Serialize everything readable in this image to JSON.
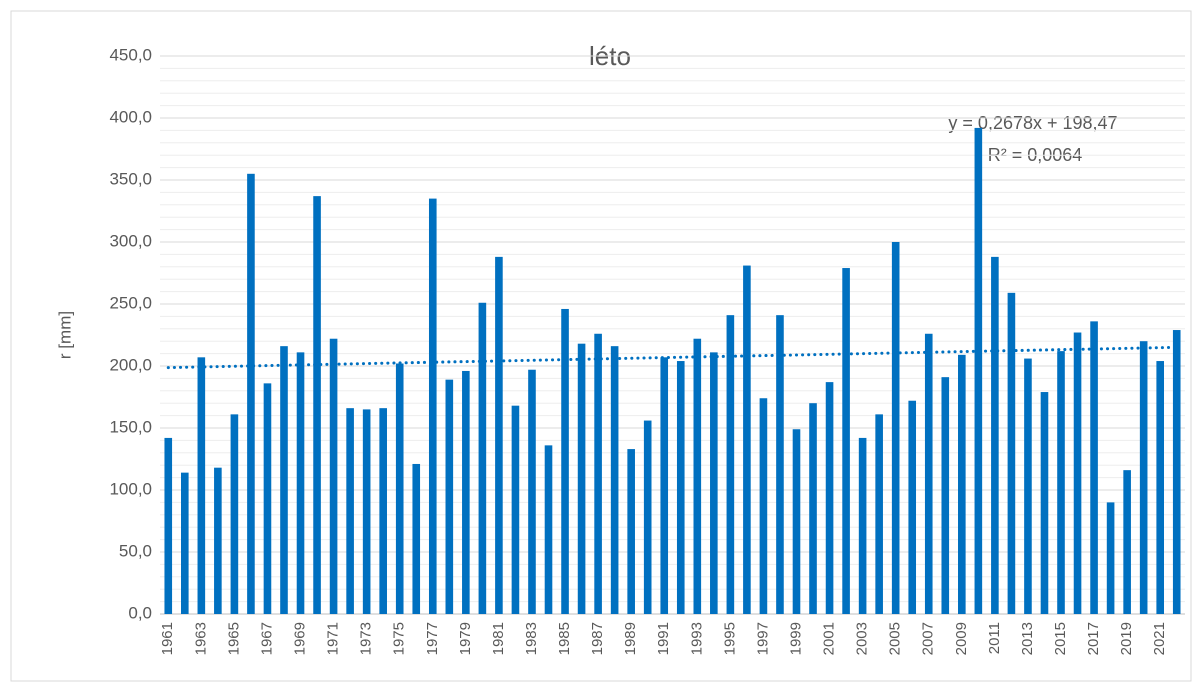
{
  "chart_data": {
    "type": "bar",
    "title": "léto",
    "y_label": "r [mm]",
    "color": "#0070c0",
    "categories": [
      "1961",
      null,
      "1963",
      null,
      "1965",
      null,
      "1967",
      null,
      "1969",
      null,
      "1971",
      null,
      "1973",
      null,
      "1975",
      null,
      "1977",
      null,
      "1979",
      null,
      "1981",
      null,
      "1983",
      null,
      "1985",
      null,
      "1987",
      null,
      "1989",
      null,
      "1991",
      null,
      "1993",
      null,
      "1995",
      null,
      "1997",
      null,
      "1999",
      null,
      "2001",
      null,
      "2003",
      null,
      "2005",
      null,
      "2007",
      null,
      "2009",
      null,
      "2011",
      null,
      "2013",
      null,
      "2015",
      null,
      "2017",
      null,
      "2019",
      null,
      "2021",
      null
    ],
    "values": [
      142,
      114,
      207,
      118,
      161,
      355,
      186,
      216,
      211,
      337,
      222,
      166,
      165,
      166,
      202,
      121,
      335,
      189,
      196,
      251,
      288,
      168,
      197,
      136,
      246,
      218,
      226,
      216,
      133,
      156,
      207,
      204,
      222,
      211,
      241,
      281,
      174,
      241,
      149,
      170,
      187,
      279,
      142,
      161,
      300,
      172,
      226,
      191,
      209,
      392,
      288,
      259,
      206,
      179,
      212,
      227,
      236,
      90,
      116,
      220,
      204,
      229
    ],
    "ylim": [
      0,
      450
    ],
    "yticks": [
      {
        "value": 0,
        "label": "0,0"
      },
      {
        "value": 50,
        "label": "50,0"
      },
      {
        "value": 100,
        "label": "100,0"
      },
      {
        "value": 150,
        "label": "150,0"
      },
      {
        "value": 200,
        "label": "200,0"
      },
      {
        "value": 250,
        "label": "250,0"
      },
      {
        "value": 300,
        "label": "300,0"
      },
      {
        "value": 350,
        "label": "350,0"
      },
      {
        "value": 400,
        "label": "400,0"
      },
      {
        "value": 450,
        "label": "450,0"
      }
    ],
    "grid": true,
    "minor_grid_step": 10,
    "trendline": {
      "slope": 0.2678,
      "intercept": 198.47,
      "equation": "y = 0,2678x + 198,47",
      "r2": "R² = 0,0064"
    }
  }
}
